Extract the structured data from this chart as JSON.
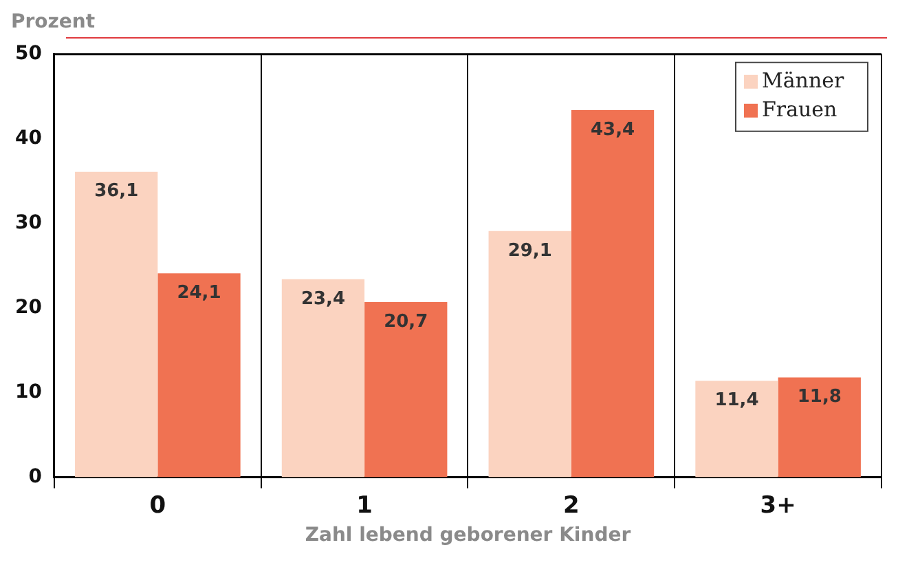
{
  "chart_data": {
    "type": "bar",
    "ylabel": "Prozent",
    "xlabel": "Zahl lebend geborener Kinder",
    "categories": [
      "0",
      "1",
      "2",
      "3+"
    ],
    "series": [
      {
        "name": "Männer",
        "color": "#fbd3c0",
        "values": [
          36.1,
          23.4,
          29.1,
          11.4
        ],
        "value_labels": [
          "36,1",
          "23,4",
          "29,1",
          "11,4"
        ]
      },
      {
        "name": "Frauen",
        "color": "#f07252",
        "values": [
          24.1,
          20.7,
          43.4,
          11.8
        ],
        "value_labels": [
          "24,1",
          "20,7",
          "43,4",
          "11,8"
        ]
      }
    ],
    "ylim": [
      0,
      50
    ],
    "yticks": [
      0,
      10,
      20,
      30,
      40,
      50
    ],
    "grid": "x",
    "legend": "top right"
  }
}
